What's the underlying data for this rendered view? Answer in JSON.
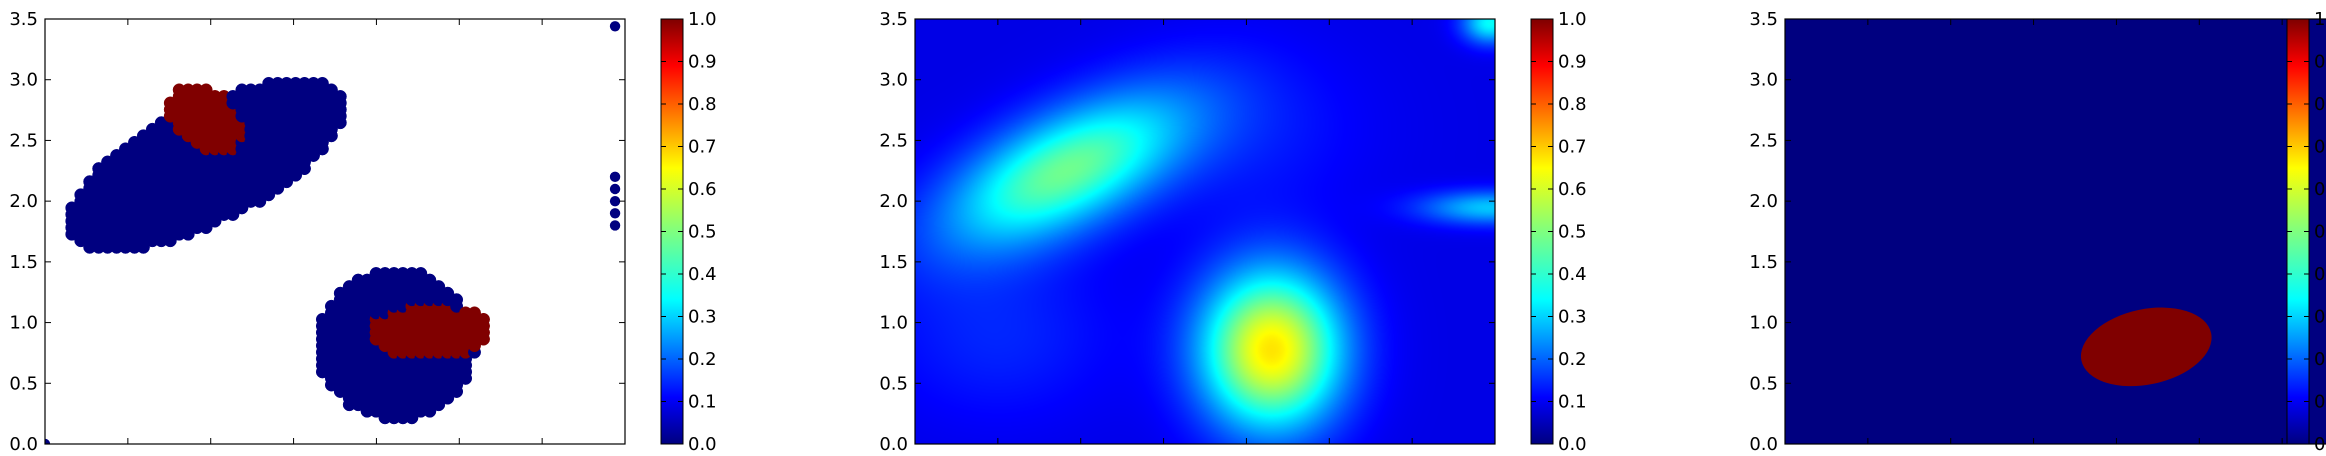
{
  "chart_data": [
    {
      "type": "scatter",
      "title": "",
      "xlabel": "",
      "ylabel": "",
      "xlim": [
        0.0,
        3.5
      ],
      "ylim": [
        0.0,
        3.5
      ],
      "x_ticks": [
        "0.0",
        "0.5",
        "1.0",
        "1.5",
        "2.0",
        "2.5",
        "3.0",
        "3.5"
      ],
      "y_ticks": [
        "0.0",
        "0.5",
        "1.0",
        "1.5",
        "2.0",
        "2.5",
        "3.0",
        "3.5"
      ],
      "colormap": "jet",
      "colorbar": {
        "range": [
          0.0,
          1.0
        ],
        "ticks": [
          "0.0",
          "0.1",
          "0.2",
          "0.3",
          "0.4",
          "0.5",
          "0.6",
          "0.7",
          "0.8",
          "0.9",
          "1.0"
        ]
      },
      "regions": [
        {
          "shape": "ellipse",
          "cx": 0.97,
          "cy": 2.3,
          "rx": 0.44,
          "ry": 1.0,
          "rotation_deg": 38,
          "value": 0.0
        },
        {
          "shape": "ellipse",
          "cx": 0.97,
          "cy": 2.68,
          "rx": 0.3,
          "ry": 0.2,
          "rotation_deg": 30,
          "value": 1.0
        },
        {
          "shape": "ellipse",
          "cx": 2.12,
          "cy": 0.82,
          "rx": 0.62,
          "ry": 0.48,
          "rotation_deg": 0,
          "value": 0.0
        },
        {
          "shape": "ellipse",
          "cx": 2.33,
          "cy": 0.93,
          "rx": 0.22,
          "ry": 0.37,
          "rotation_deg": 0,
          "value": 1.0
        }
      ],
      "extra_points": [
        {
          "x": 3.44,
          "y": 3.44,
          "value": 0.0
        },
        {
          "x": 3.44,
          "y": 1.8,
          "value": 0.0
        },
        {
          "x": 3.44,
          "y": 1.9,
          "value": 0.0
        },
        {
          "x": 3.44,
          "y": 2.0,
          "value": 0.0
        },
        {
          "x": 3.44,
          "y": 2.1,
          "value": 0.0
        },
        {
          "x": 3.44,
          "y": 2.2,
          "value": 0.0
        },
        {
          "x": 0.0,
          "y": 0.0,
          "value": 0.0
        }
      ],
      "grid": false
    },
    {
      "type": "heatmap",
      "title": "",
      "xlabel": "",
      "ylabel": "",
      "xlim": [
        0.0,
        3.5
      ],
      "ylim": [
        0.0,
        3.5
      ],
      "x_ticks": [
        "0.0",
        "0.5",
        "1.0",
        "1.5",
        "2.0",
        "2.5",
        "3.0",
        "3.5"
      ],
      "y_ticks": [
        "0.0",
        "0.5",
        "1.0",
        "1.5",
        "2.0",
        "2.5",
        "3.0",
        "3.5"
      ],
      "colormap": "jet",
      "colorbar": {
        "range": [
          0.0,
          1.0
        ],
        "ticks": [
          "0.0",
          "0.1",
          "0.2",
          "0.3",
          "0.4",
          "0.5",
          "0.6",
          "0.7",
          "0.8",
          "0.9",
          "1.0"
        ]
      },
      "background_value": 0.1,
      "peaks": [
        {
          "cx": 0.9,
          "cy": 2.25,
          "sx": 0.3,
          "sy": 0.6,
          "rotation_deg": 38,
          "amplitude": 0.38
        },
        {
          "cx": 2.15,
          "cy": 0.78,
          "sx": 0.46,
          "sy": 0.3,
          "rotation_deg": 0,
          "amplitude": 0.55
        },
        {
          "cx": 3.47,
          "cy": 3.47,
          "sx": 0.12,
          "sy": 0.12,
          "rotation_deg": 0,
          "amplitude": 0.28
        },
        {
          "cx": 3.47,
          "cy": 1.95,
          "sx": 0.1,
          "sy": 0.3,
          "rotation_deg": 0,
          "amplitude": 0.22
        },
        {
          "cx": 0.5,
          "cy": 0.9,
          "sx": 0.5,
          "sy": 0.5,
          "rotation_deg": 0,
          "amplitude": 0.06
        },
        {
          "cx": 2.0,
          "cy": 2.6,
          "sx": 0.5,
          "sy": 0.5,
          "rotation_deg": 0,
          "amplitude": 0.05
        }
      ],
      "grid": false
    },
    {
      "type": "heatmap",
      "title": "",
      "xlabel": "",
      "ylabel": "",
      "xlim": [
        0.0,
        3.5
      ],
      "ylim": [
        0.0,
        3.5
      ],
      "x_ticks": [
        "0.0",
        "0.5",
        "1.0",
        "1.5",
        "2.0",
        "2.5",
        "3.0",
        "3.5"
      ],
      "y_ticks": [
        "0.0",
        "0.5",
        "1.0",
        "1.5",
        "2.0",
        "2.5",
        "3.0",
        "3.5"
      ],
      "colormap": "jet",
      "colorbar": {
        "range": [
          0.0,
          1.0
        ],
        "ticks": [
          "0.0",
          "0.1",
          "0.2",
          "0.3",
          "0.4",
          "0.5",
          "0.6",
          "0.7",
          "0.8",
          "0.9",
          "1.0"
        ]
      },
      "background_value": 0.0,
      "regions": [
        {
          "shape": "ellipse",
          "cx": 2.18,
          "cy": 0.8,
          "rx": 0.4,
          "ry": 0.31,
          "rotation_deg": -12,
          "value": 1.0
        }
      ],
      "grid": false
    }
  ]
}
